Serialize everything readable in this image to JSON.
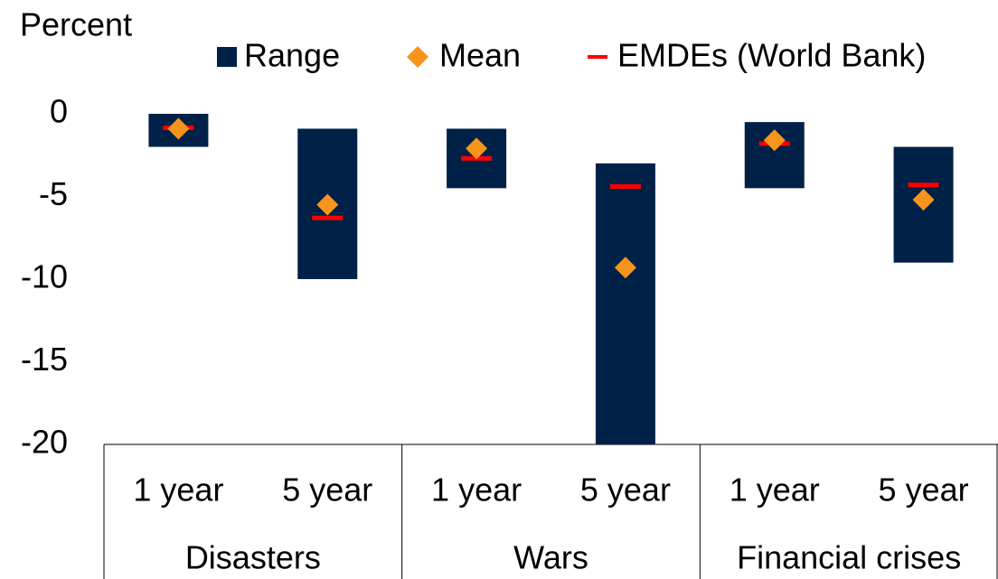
{
  "chart_data": {
    "type": "range",
    "y_label": "Percent",
    "groups": [
      "Disasters",
      "Wars",
      "Financial crises"
    ],
    "categories": [
      "1 year",
      "5 year",
      "1 year",
      "5 year",
      "1 year",
      "5 year"
    ],
    "series": [
      {
        "name": "Range",
        "color": "#002147",
        "high": [
          0,
          -0.9,
          -0.9,
          -3,
          -0.5,
          -2
        ],
        "low": [
          -2,
          -10,
          -4.5,
          -20,
          -4.5,
          -9
        ]
      },
      {
        "name": "Mean",
        "color": "#f7941d",
        "values": [
          -0.9,
          -5.5,
          -2.1,
          -9.3,
          -1.6,
          -5.2
        ]
      },
      {
        "name": "EMDEs (World Bank)",
        "color": "#ff0000",
        "values": [
          -0.85,
          -6.3,
          -2.7,
          -4.4,
          -1.8,
          -4.3
        ]
      }
    ],
    "ylim": [
      -20,
      0
    ],
    "yticks": [
      0,
      -5,
      -10,
      -15,
      -20
    ],
    "grid": false
  }
}
